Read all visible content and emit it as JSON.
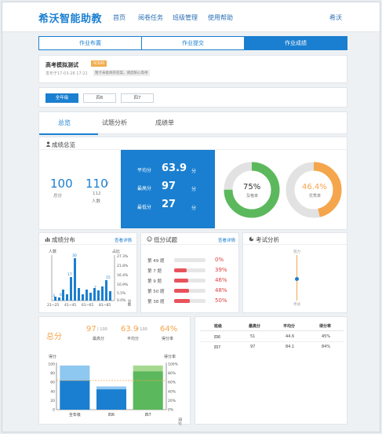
{
  "header": {
    "logo": "希沃智能助教",
    "nav": [
      "首页",
      "阅卷任务",
      "班级管理",
      "使用帮助"
    ],
    "user": "希沃"
  },
  "tabs": [
    {
      "label": "作业布置",
      "active": false
    },
    {
      "label": "作业提交",
      "active": false
    },
    {
      "label": "作业成绩",
      "active": true
    }
  ],
  "exam": {
    "title": "高考模拟测试",
    "score_badge": "0/100",
    "date": "发布于17-03-28 17:21",
    "note": "暂计未批阅的答案，请您耐心等待"
  },
  "grade_filter": [
    "全年级",
    "四6",
    "四7"
  ],
  "sub_tabs": [
    "总览",
    "试题分析",
    "成绩单"
  ],
  "overview": {
    "title": "成绩总览",
    "total_score": "100",
    "total_score_label": "总分",
    "submitted": "110",
    "slash": "/",
    "people_total": "112",
    "people_label": "人数",
    "avg_label": "平均分",
    "avg": "63.9",
    "max_label": "最高分",
    "max": "97",
    "min_label": "最低分",
    "min": "27",
    "unit": "分",
    "pass_rate": "75%",
    "pass_rate_value": 75,
    "pass_label": "及格率",
    "excellent_rate": "46.4%",
    "excellent_rate_value": 46.4,
    "excellent_label": "优秀率",
    "colors": {
      "pass": "#5cb85c",
      "excellent": "#f5a54b",
      "track": "#e2e2e2",
      "accent": "#1a7fd0"
    }
  },
  "distribution": {
    "title": "成绩分布",
    "link": "查看详情",
    "left_axis": "人数",
    "right_axis": "占比",
    "right_ticks": [
      "27.3%",
      "21.8%",
      "16.4%",
      "10.9%",
      "5.5%",
      "0.0%"
    ],
    "x_ticks": [
      "21~25",
      "41~45",
      "61~65",
      "81~85"
    ],
    "x_unit": "分数",
    "bar_labels": [
      "3",
      "6",
      "17",
      "30",
      "7",
      "15"
    ]
  },
  "low_questions": {
    "title": "低分试题",
    "link": "查看详情",
    "rows": [
      {
        "label": "第 49 题",
        "value": "0%",
        "rate": 0
      },
      {
        "label": "第 7 题",
        "value": "39%",
        "rate": 39
      },
      {
        "label": "第 9 题",
        "value": "46%",
        "rate": 46
      },
      {
        "label": "第 50 题",
        "value": "48%",
        "rate": 48
      },
      {
        "label": "第 38 题",
        "value": "50%",
        "rate": 50
      }
    ]
  },
  "exam_analysis": {
    "title": "考试分析",
    "top_label": "努力",
    "bottom_label": "考试"
  },
  "summary": {
    "label": "总分",
    "max": "97",
    "max_den": "/ 100",
    "max_label": "最高分",
    "avg": "63.9",
    "avg_den": "/ 100",
    "avg_label": "平均分",
    "rate": "64%",
    "rate_label": "得分率",
    "left_axis": "得分",
    "right_axis": "得分率",
    "left_ticks": [
      "100",
      "80",
      "60",
      "40",
      "20",
      "0"
    ],
    "right_ticks": [
      "100%",
      "80%",
      "60%",
      "40%",
      "20%",
      "0%"
    ],
    "right_unit": "得分率",
    "categories": [
      "全年级",
      "四6",
      "四7"
    ]
  },
  "chart_data": {
    "type": "bar",
    "categories": [
      "全年级",
      "四6",
      "四7"
    ],
    "series": [
      {
        "name": "最高分",
        "values": [
          97,
          51,
          97
        ]
      },
      {
        "name": "平均分",
        "values": [
          63.9,
          44.6,
          84.1
        ]
      }
    ],
    "ylabel": "得分",
    "ylim": [
      0,
      100
    ]
  },
  "score_table": {
    "headers": [
      "班级",
      "最高分",
      "平均分",
      "得分率"
    ],
    "rows": [
      [
        "四6",
        "51",
        "44.6",
        "45%"
      ],
      [
        "四7",
        "97",
        "84.1",
        "84%"
      ]
    ]
  }
}
